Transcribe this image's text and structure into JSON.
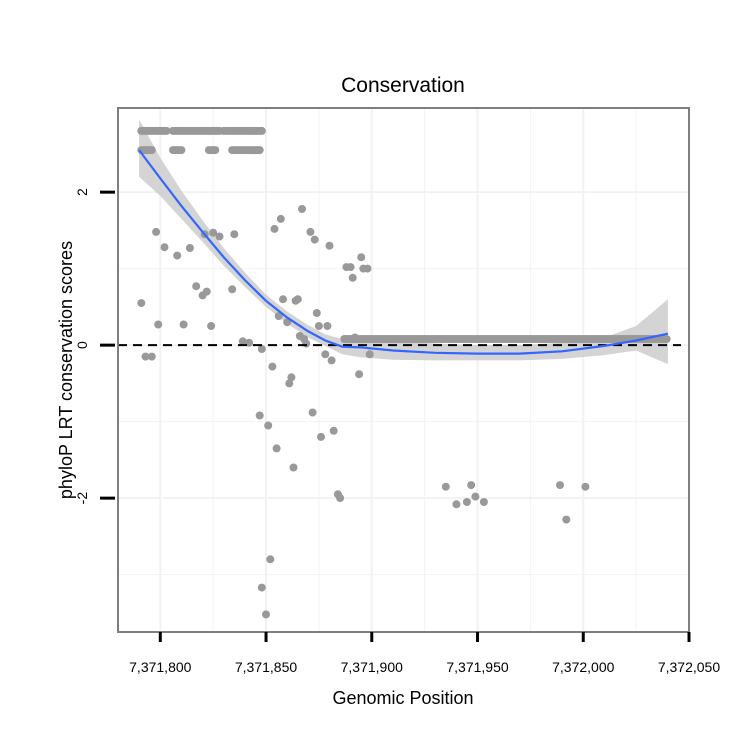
{
  "chart_data": {
    "type": "scatter",
    "title": "Conservation",
    "xlabel": "Genomic Position",
    "ylabel": "phyloP LRT conservation scores",
    "xlim": [
      7371780,
      7372050
    ],
    "ylim": [
      -3.75,
      3.1
    ],
    "grid": true,
    "x_ticks": [
      7371800,
      7371850,
      7371900,
      7371950,
      7372000,
      7372050
    ],
    "x_tick_labels": [
      "7,371,800",
      "7,371,850",
      "7,371,900",
      "7,371,950",
      "7,372,000",
      "7,372,050"
    ],
    "y_ticks": [
      -2,
      0,
      2
    ],
    "y_tick_labels": [
      "-2",
      "0",
      "2"
    ],
    "reference_line": {
      "y": 0,
      "style": "dashed",
      "color": "#000000"
    },
    "colors": {
      "points": "#999999",
      "smooth": "#3366ff",
      "band": "#cccccc",
      "frame": "#7f7f7f",
      "grid": "#f2f2f2"
    },
    "points_high": {
      "x_segments": [
        [
          7371791,
          7371803
        ],
        [
          7371806,
          7371828
        ],
        [
          7371830,
          7371848
        ]
      ],
      "x_step": 1,
      "y": 2.8,
      "second_row": {
        "x_segments": [
          [
            7371791,
            7371796
          ],
          [
            7371806,
            7371810
          ],
          [
            7371823,
            7371826
          ],
          [
            7371834,
            7371847
          ]
        ],
        "y": 2.55
      }
    },
    "points_low": {
      "x_segments": [
        [
          7371887,
          7372040
        ]
      ],
      "x_step": 1.2,
      "y": 0.08
    },
    "points_scattered": [
      {
        "x": 7371791,
        "y": 0.55
      },
      {
        "x": 7371793,
        "y": -0.15
      },
      {
        "x": 7371796,
        "y": -0.15
      },
      {
        "x": 7371798,
        "y": 1.48
      },
      {
        "x": 7371799,
        "y": 0.27
      },
      {
        "x": 7371802,
        "y": 1.28
      },
      {
        "x": 7371808,
        "y": 1.17
      },
      {
        "x": 7371811,
        "y": 0.27
      },
      {
        "x": 7371814,
        "y": 1.27
      },
      {
        "x": 7371817,
        "y": 0.77
      },
      {
        "x": 7371820,
        "y": 0.65
      },
      {
        "x": 7371821,
        "y": 1.45
      },
      {
        "x": 7371822,
        "y": 0.7
      },
      {
        "x": 7371824,
        "y": 0.25
      },
      {
        "x": 7371825,
        "y": 1.47
      },
      {
        "x": 7371828,
        "y": 1.42
      },
      {
        "x": 7371834,
        "y": 0.73
      },
      {
        "x": 7371835,
        "y": 1.45
      },
      {
        "x": 7371839,
        "y": 0.05
      },
      {
        "x": 7371842,
        "y": 0.03
      },
      {
        "x": 7371847,
        "y": -0.92
      },
      {
        "x": 7371848,
        "y": -0.05
      },
      {
        "x": 7371848,
        "y": -3.17
      },
      {
        "x": 7371850,
        "y": -3.52
      },
      {
        "x": 7371851,
        "y": -1.05
      },
      {
        "x": 7371852,
        "y": -2.8
      },
      {
        "x": 7371853,
        "y": -0.28
      },
      {
        "x": 7371854,
        "y": 1.52
      },
      {
        "x": 7371855,
        "y": -1.35
      },
      {
        "x": 7371856,
        "y": 0.38
      },
      {
        "x": 7371857,
        "y": 1.65
      },
      {
        "x": 7371858,
        "y": 0.6
      },
      {
        "x": 7371860,
        "y": 0.3
      },
      {
        "x": 7371861,
        "y": -0.5
      },
      {
        "x": 7371862,
        "y": -0.42
      },
      {
        "x": 7371863,
        "y": -1.6
      },
      {
        "x": 7371864,
        "y": 0.58
      },
      {
        "x": 7371865,
        "y": 0.6
      },
      {
        "x": 7371866,
        "y": 0.12
      },
      {
        "x": 7371867,
        "y": 1.78
      },
      {
        "x": 7371868,
        "y": 0.08
      },
      {
        "x": 7371869,
        "y": 0.02
      },
      {
        "x": 7371871,
        "y": 1.48
      },
      {
        "x": 7371872,
        "y": -0.88
      },
      {
        "x": 7371873,
        "y": 1.38
      },
      {
        "x": 7371874,
        "y": 0.42
      },
      {
        "x": 7371875,
        "y": 0.25
      },
      {
        "x": 7371876,
        "y": -1.2
      },
      {
        "x": 7371878,
        "y": -0.12
      },
      {
        "x": 7371879,
        "y": 0.25
      },
      {
        "x": 7371880,
        "y": 1.3
      },
      {
        "x": 7371881,
        "y": -0.2
      },
      {
        "x": 7371882,
        "y": -1.12
      },
      {
        "x": 7371884,
        "y": -1.95
      },
      {
        "x": 7371885,
        "y": -2.0
      },
      {
        "x": 7371888,
        "y": 1.02
      },
      {
        "x": 7371890,
        "y": 1.02
      },
      {
        "x": 7371891,
        "y": 0.88
      },
      {
        "x": 7371892,
        "y": 0.1
      },
      {
        "x": 7371894,
        "y": -0.38
      },
      {
        "x": 7371895,
        "y": 1.15
      },
      {
        "x": 7371896,
        "y": 1.0
      },
      {
        "x": 7371898,
        "y": 1.0
      },
      {
        "x": 7371899,
        "y": -0.12
      },
      {
        "x": 7371935,
        "y": -1.85
      },
      {
        "x": 7371940,
        "y": -2.08
      },
      {
        "x": 7371945,
        "y": -2.05
      },
      {
        "x": 7371947,
        "y": -1.83
      },
      {
        "x": 7371949,
        "y": -1.98
      },
      {
        "x": 7371953,
        "y": -2.05
      },
      {
        "x": 7371989,
        "y": -1.83
      },
      {
        "x": 7371992,
        "y": -2.28
      },
      {
        "x": 7372001,
        "y": -1.85
      }
    ],
    "smooth": {
      "x": [
        7371790,
        7371800,
        7371810,
        7371820,
        7371830,
        7371840,
        7371850,
        7371860,
        7371870,
        7371878,
        7371886,
        7371895,
        7371910,
        7371930,
        7371950,
        7371970,
        7371990,
        7372010,
        7372025,
        7372040
      ],
      "y": [
        2.55,
        2.18,
        1.82,
        1.48,
        1.15,
        0.85,
        0.58,
        0.36,
        0.18,
        0.06,
        -0.02,
        -0.03,
        -0.07,
        -0.1,
        -0.11,
        -0.11,
        -0.08,
        -0.01,
        0.06,
        0.15
      ],
      "lower": [
        2.2,
        1.95,
        1.65,
        1.35,
        1.04,
        0.76,
        0.5,
        0.28,
        0.1,
        -0.01,
        -0.12,
        -0.16,
        -0.19,
        -0.2,
        -0.2,
        -0.2,
        -0.18,
        -0.13,
        -0.07,
        -0.25
      ],
      "upper": [
        2.95,
        2.45,
        2.02,
        1.63,
        1.27,
        0.95,
        0.66,
        0.44,
        0.26,
        0.14,
        0.08,
        0.1,
        0.07,
        0.02,
        0.0,
        0.0,
        0.03,
        0.1,
        0.25,
        0.6
      ]
    }
  }
}
